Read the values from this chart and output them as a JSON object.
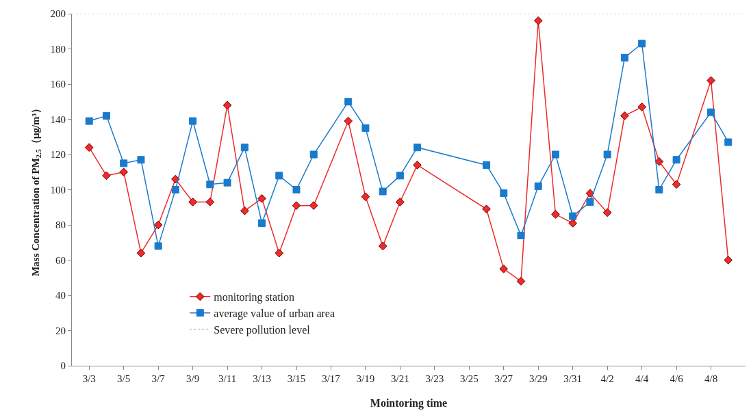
{
  "chart_data": {
    "type": "line",
    "xlabel": "Mointoring time",
    "ylabel": "Mass Concentration of PM$_{2.5}$（μg/m³）",
    "x": [
      "--03-03",
      "--03-04",
      "--03-05",
      "--03-06",
      "--03-07",
      "--03-08",
      "--03-09",
      "--03-10",
      "--03-11",
      "--03-12",
      "--03-13",
      "--03-14",
      "--03-15",
      "--03-16",
      "--03-18",
      "--03-19",
      "--03-20",
      "--03-21",
      "--03-22",
      "--03-26",
      "--03-27",
      "--03-28",
      "--03-29",
      "--03-30",
      "--03-31",
      "--04-01",
      "--04-02",
      "--04-03",
      "--04-04",
      "--04-05",
      "--04-06",
      "--04-08",
      "--04-09"
    ],
    "series": [
      {
        "name": "monitoring station",
        "color": "#ee2a2a",
        "marker": "diamond",
        "values": [
          124,
          108,
          110,
          64,
          80,
          106,
          93,
          93,
          148,
          88,
          95,
          64,
          91,
          91,
          139,
          96,
          68,
          93,
          114,
          89,
          55,
          48,
          196,
          86,
          81,
          98,
          87,
          142,
          147,
          116,
          103,
          162,
          60
        ]
      },
      {
        "name": "average value of urban area",
        "color": "#1a7acc",
        "marker": "square",
        "values": [
          139,
          142,
          115,
          117,
          68,
          100,
          139,
          103,
          104,
          124,
          81,
          108,
          100,
          120,
          150,
          135,
          99,
          108,
          124,
          114,
          98,
          74,
          102,
          120,
          85,
          93,
          120,
          175,
          183,
          100,
          117,
          144,
          127
        ]
      }
    ],
    "ref_lines": [
      {
        "axis": "y",
        "value": 200,
        "label": "Severe pollution level",
        "color": "#a0a0a0",
        "line_style": "dotted"
      }
    ],
    "xlim": [
      "--03-02",
      "--04-10"
    ],
    "xticks": [
      {
        "value": "--03-03",
        "label": "3/3"
      },
      {
        "value": "--03-05",
        "label": "3/5"
      },
      {
        "value": "--03-07",
        "label": "3/7"
      },
      {
        "value": "--03-09",
        "label": "3/9"
      },
      {
        "value": "--03-11",
        "label": "3/11"
      },
      {
        "value": "--03-13",
        "label": "3/13"
      },
      {
        "value": "--03-15",
        "label": "3/15"
      },
      {
        "value": "--03-17",
        "label": "3/17"
      },
      {
        "value": "--03-19",
        "label": "3/19"
      },
      {
        "value": "--03-21",
        "label": "3/21"
      },
      {
        "value": "--03-23",
        "label": "3/23"
      },
      {
        "value": "--03-25",
        "label": "3/25"
      },
      {
        "value": "--03-27",
        "label": "3/27"
      },
      {
        "value": "--03-29",
        "label": "3/29"
      },
      {
        "value": "--03-31",
        "label": "3/31"
      },
      {
        "value": "--04-02",
        "label": "4/2"
      },
      {
        "value": "--04-04",
        "label": "4/4"
      },
      {
        "value": "--04-06",
        "label": "4/6"
      },
      {
        "value": "--04-08",
        "label": "4/8"
      }
    ],
    "ylim": [
      0,
      200
    ],
    "yticks": [
      0,
      20,
      40,
      60,
      80,
      100,
      120,
      140,
      160,
      180,
      200
    ],
    "grid": false,
    "legend": "bottom left",
    "line_style": "solid"
  }
}
